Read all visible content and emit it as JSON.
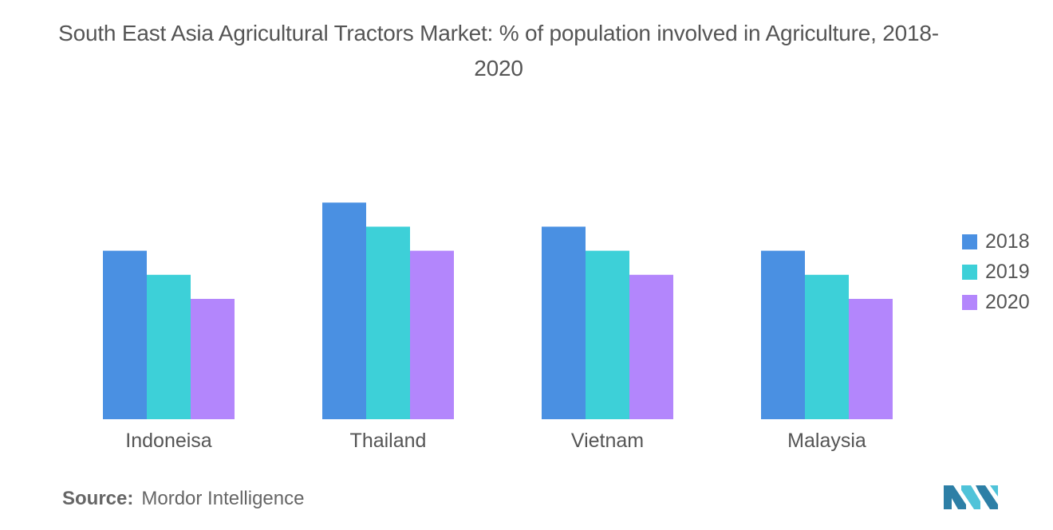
{
  "title": "South East Asia Agricultural Tractors Market: % of population involved in Agriculture, 2018-2020",
  "source": {
    "label": "Source:",
    "text": "Mordor Intelligence"
  },
  "colors": {
    "2018": "#4a90e2",
    "2019": "#3dd0d8",
    "2020": "#b386fc",
    "text": "#555555",
    "logo_dark": "#2d7fa6",
    "logo_light": "#4fc3d9"
  },
  "chart_data": {
    "type": "bar",
    "title": "South East Asia Agricultural Tractors Market: % of population involved in Agriculture, 2018-2020",
    "categories": [
      "Indoneisa",
      "Thailand",
      "Vietnam",
      "Malaysia"
    ],
    "series": [
      {
        "name": "2018",
        "color": "#4a90e2",
        "values": [
          7,
          9,
          8,
          7
        ]
      },
      {
        "name": "2019",
        "color": "#3dd0d8",
        "values": [
          6,
          8,
          7,
          6
        ]
      },
      {
        "name": "2020",
        "color": "#b386fc",
        "values": [
          5,
          7,
          6,
          5
        ]
      }
    ],
    "xlabel": "",
    "ylabel": "",
    "ylim": [
      0,
      10
    ],
    "grid": false,
    "legend_position": "right"
  }
}
